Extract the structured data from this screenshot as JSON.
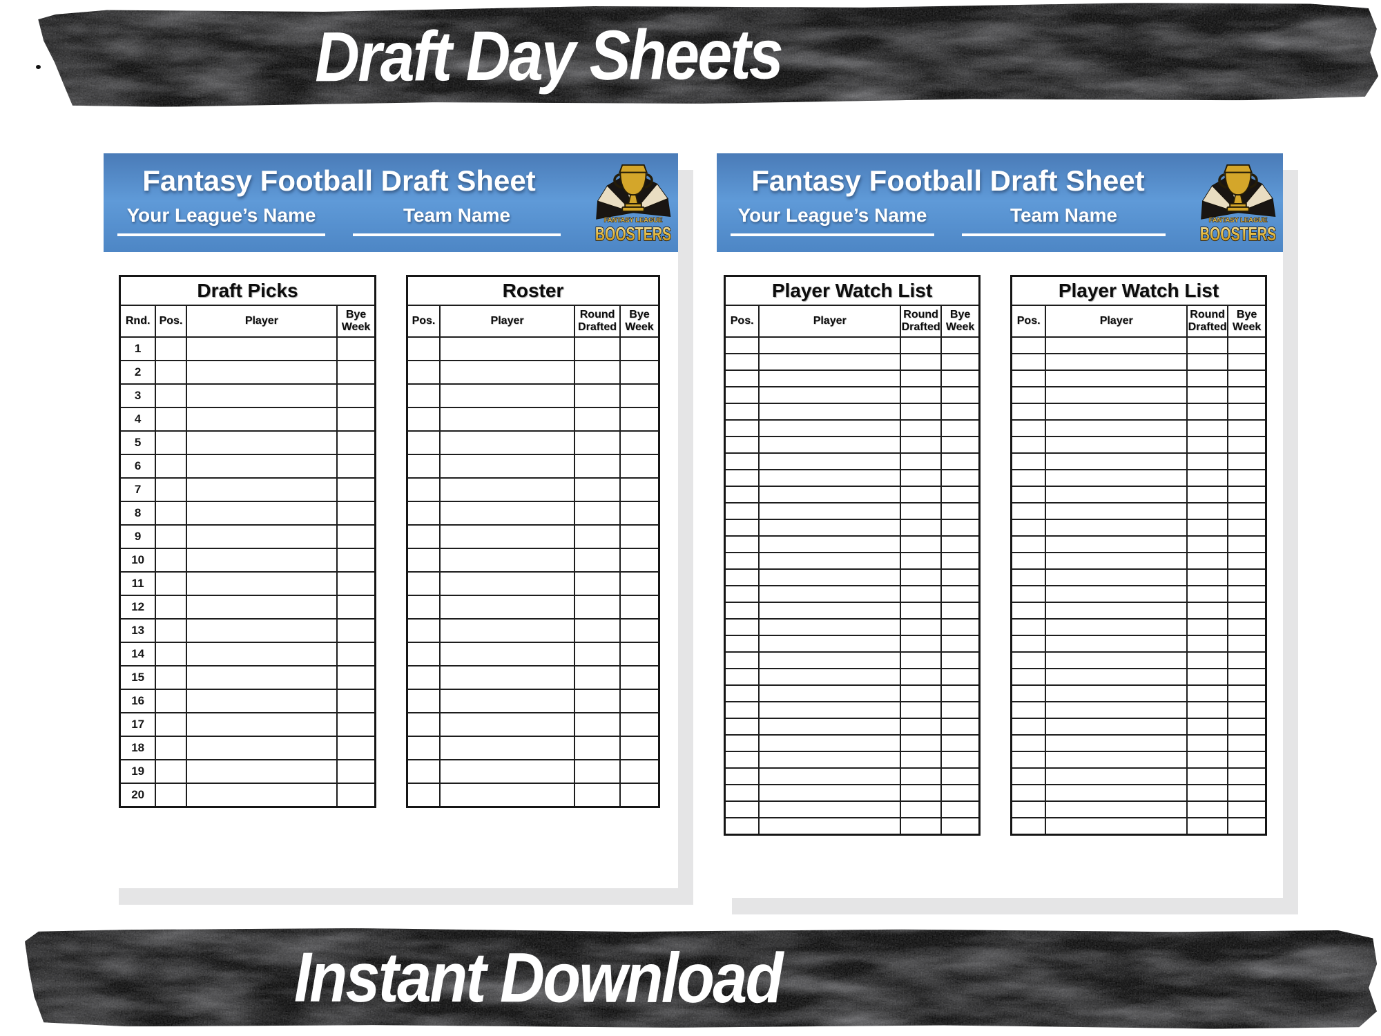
{
  "banners": {
    "top_label": "Draft Day Sheets",
    "bottom_label": "Instant Download"
  },
  "sheet_header": {
    "title": "Fantasy Football Draft Sheet",
    "league_label": "Your League’s Name",
    "team_label": "Team Name",
    "logo_line1": "FANTASY LEAGUE",
    "logo_line2": "BOOSTERS"
  },
  "colors": {
    "tape_black": "#0c0c0c",
    "banner_blue_top": "#4a7bb7",
    "banner_blue_mid": "#5f9ad8",
    "banner_blue_bottom": "#4d86c5",
    "trophy_gold": "#d4a62a",
    "logo_cream": "#ece0c4",
    "page_shadow": "#e5e5e6",
    "table_line": "#1d1d1d"
  },
  "pages": [
    {
      "name": "draft-sheet",
      "tables": [
        {
          "kind": "draft-picks",
          "title": "Draft Picks",
          "columns": [
            "Rnd.",
            "Pos.",
            "Player",
            "Bye\nWeek"
          ],
          "rows": 20,
          "row_labels": [
            "1",
            "2",
            "3",
            "4",
            "5",
            "6",
            "7",
            "8",
            "9",
            "10",
            "11",
            "12",
            "13",
            "14",
            "15",
            "16",
            "17",
            "18",
            "19",
            "20"
          ]
        },
        {
          "kind": "roster",
          "title": "Roster",
          "columns": [
            "Pos.",
            "Player",
            "Round\nDrafted",
            "Bye\nWeek"
          ],
          "rows": 20
        }
      ]
    },
    {
      "name": "watch-list-sheet",
      "tables": [
        {
          "kind": "watch",
          "title": "Player Watch List",
          "columns": [
            "Pos.",
            "Player",
            "Round\nDrafted",
            "Bye\nWeek"
          ],
          "rows": 30
        },
        {
          "kind": "watch",
          "title": "Player Watch List",
          "columns": [
            "Pos.",
            "Player",
            "Round\nDrafted",
            "Bye\nWeek"
          ],
          "rows": 30
        }
      ]
    }
  ]
}
